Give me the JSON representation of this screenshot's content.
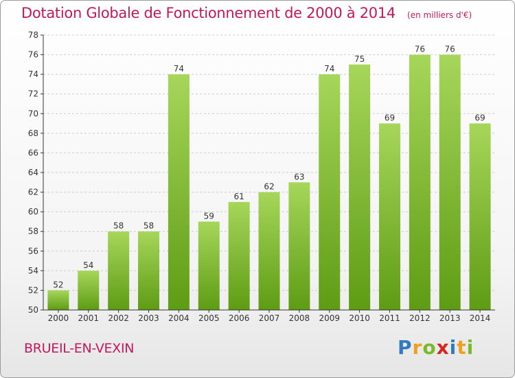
{
  "header": {
    "title": "Dotation Globale de Fonctionnement de 2000 à 2014",
    "subtitle": "(en milliers d'€)"
  },
  "footer": {
    "commune": "BRUEIL-EN-VEXIN",
    "logo": {
      "text": "Proxiti",
      "letters": [
        {
          "ch": "P",
          "color": "#2e7bbf"
        },
        {
          "ch": "r",
          "color": "#f0a020"
        },
        {
          "ch": "o",
          "color": "#7ab929"
        },
        {
          "ch": "x",
          "color": "#d6261f"
        },
        {
          "ch": "i",
          "color": "#2e7bbf"
        },
        {
          "ch": "t",
          "color": "#f0a020"
        },
        {
          "ch": "i",
          "color": "#7ab929"
        }
      ]
    }
  },
  "chart_data": {
    "type": "bar",
    "title": "Dotation Globale de Fonctionnement de 2000 à 2014",
    "subtitle": "(en milliers d'€)",
    "categories": [
      "2000",
      "2001",
      "2002",
      "2003",
      "2004",
      "2005",
      "2006",
      "2007",
      "2008",
      "2009",
      "2010",
      "2011",
      "2012",
      "2013",
      "2014"
    ],
    "values": [
      52,
      54,
      58,
      58,
      74,
      59,
      61,
      62,
      63,
      74,
      75,
      69,
      76,
      76,
      69
    ],
    "ylim": [
      50,
      78
    ],
    "yticks": [
      50,
      52,
      54,
      56,
      58,
      60,
      62,
      64,
      66,
      68,
      70,
      72,
      74,
      76,
      78
    ],
    "grid": true,
    "colors": {
      "bar_top": "#a6d65a",
      "bar_bottom": "#5e9c14",
      "grid": "#cccccc",
      "axis": "#333333",
      "label": "#333333"
    }
  }
}
